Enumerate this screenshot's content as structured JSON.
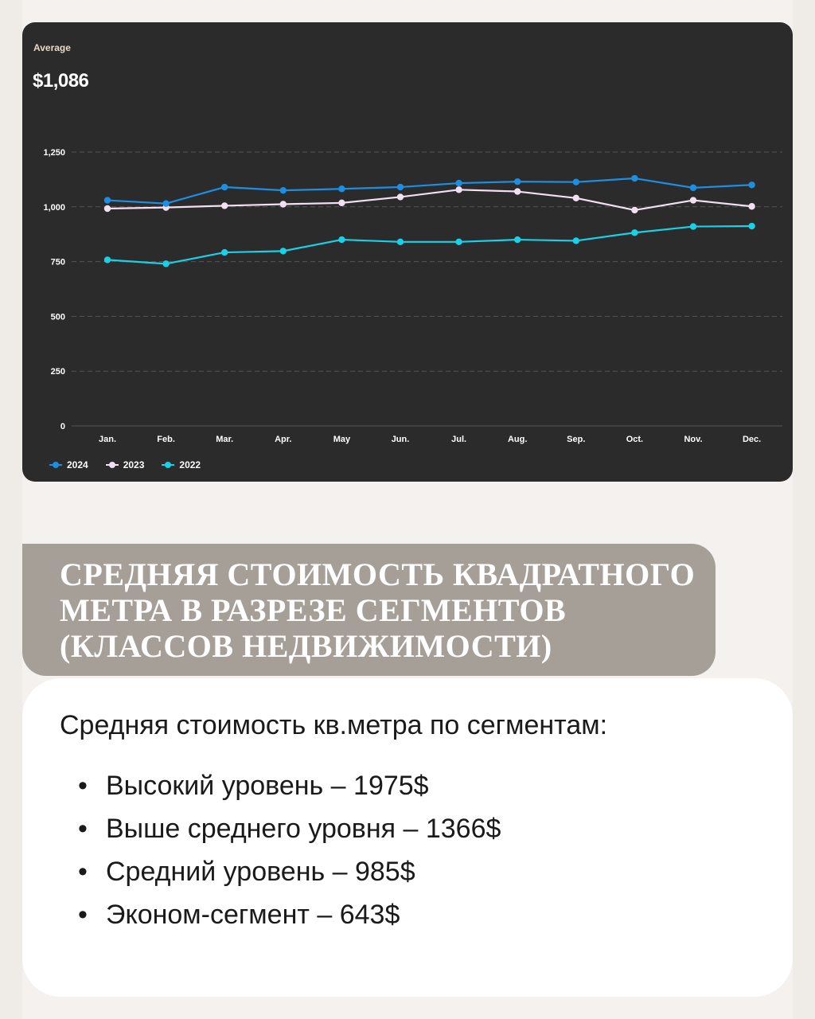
{
  "average": {
    "label": "Average",
    "value": "$1,086"
  },
  "colors": {
    "background": "#efebe7",
    "card": "#2b2b2b",
    "banner": "#a69f97",
    "series_2024": "#1c8fe3",
    "series_2023": "#f2e0f2",
    "series_2022": "#19d1e6"
  },
  "chart_data": {
    "type": "line",
    "categories": [
      "Jan.",
      "Feb.",
      "Mar.",
      "Apr.",
      "May",
      "Jun.",
      "Jul.",
      "Aug.",
      "Sep.",
      "Oct.",
      "Nov.",
      "Dec."
    ],
    "series": [
      {
        "name": "2024",
        "color": "#1c8fe3",
        "values": [
          1030,
          1015,
          1090,
          1075,
          1082,
          1090,
          1108,
          1115,
          1113,
          1130,
          1087,
          1100
        ]
      },
      {
        "name": "2023",
        "color": "#f2e0f2",
        "values": [
          992,
          997,
          1005,
          1012,
          1018,
          1045,
          1078,
          1070,
          1040,
          985,
          1030,
          1002
        ]
      },
      {
        "name": "2022",
        "color": "#19d1e6",
        "values": [
          758,
          740,
          792,
          798,
          850,
          840,
          840,
          850,
          845,
          882,
          910,
          912
        ]
      }
    ],
    "yticks": [
      "0",
      "250",
      "500",
      "750",
      "1,000",
      "1,250"
    ],
    "ylim": [
      0,
      1250
    ],
    "grid": true,
    "legend": "bottom-left"
  },
  "section": {
    "title": "СРЕДНЯЯ СТОИМОСТЬ КВАДРАТНОГО МЕТРА В РАЗРЕЗЕ СЕГМЕНТОВ (КЛАССОВ НЕДВИЖИМОСТИ)",
    "intro": "Средняя стоимость кв.метра по сегментам:",
    "bullet": "•",
    "items": [
      "Высокий уровень – 1975$",
      "Выше среднего уровня – 1366$",
      "Средний уровень – 985$",
      "Эконом-сегмент – 643$"
    ]
  }
}
